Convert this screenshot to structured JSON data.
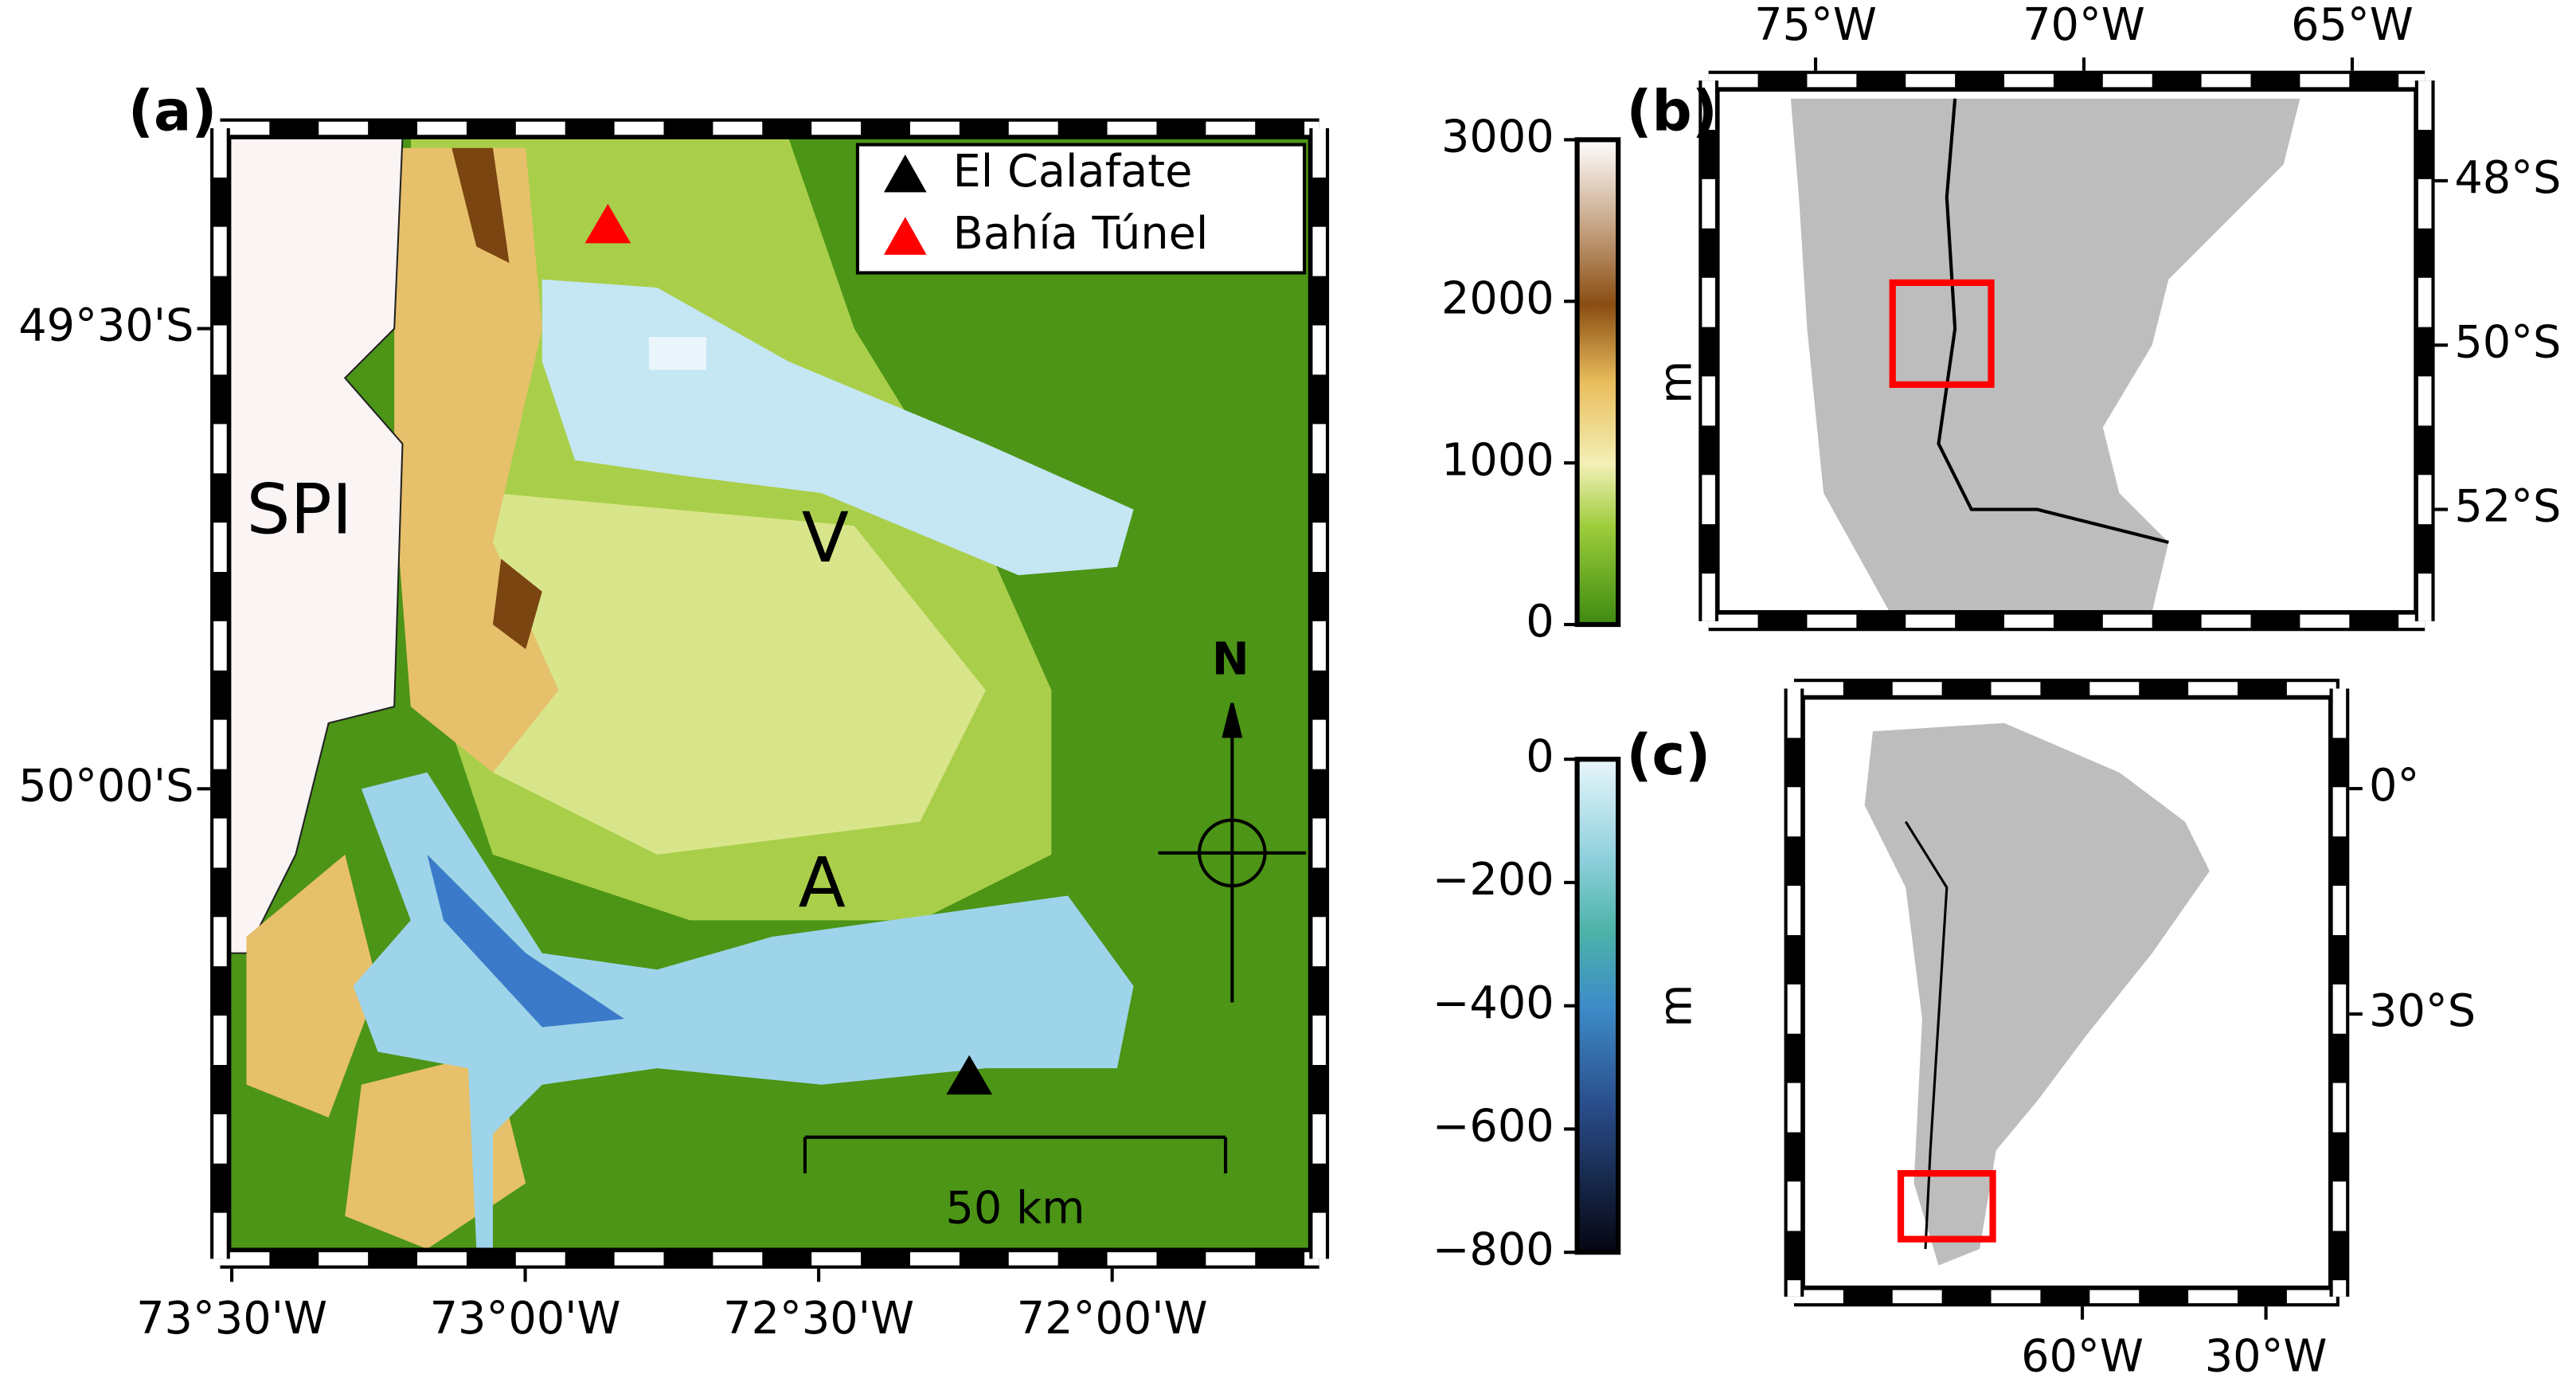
{
  "panels": {
    "a": {
      "label": "(a)",
      "xlim": [
        -73.503,
        -71.664
      ],
      "ylim": [
        -50.5,
        -49.293
      ],
      "xticks": [
        {
          "value": -73.5,
          "label": "73°30'W"
        },
        {
          "value": -73,
          "label": "73°00'W"
        },
        {
          "value": -72.5,
          "label": "72°30'W"
        },
        {
          "value": -72,
          "label": "72°00'W"
        }
      ],
      "yticks": [
        {
          "value": -49.5,
          "label": "49°30'S"
        },
        {
          "value": -50,
          "label": "50°00'S"
        }
      ],
      "legend": [
        {
          "name": "El Calafate",
          "color": "#000000"
        },
        {
          "name": "Bahía Túnel",
          "color": "#ff0000"
        }
      ],
      "annotations": {
        "spi": "SPI",
        "viedma": "V",
        "argentino": "A",
        "north": "N",
        "scale": "50 km"
      }
    },
    "b": {
      "label": "(b)",
      "xlim": [
        -76.81,
        -63.83
      ],
      "ylim": [
        -53.24,
        -46.9
      ],
      "xticks": [
        {
          "value": -75,
          "label": "75°W"
        },
        {
          "value": -70,
          "label": "70°W"
        },
        {
          "value": -65,
          "label": "65°W"
        }
      ],
      "yticks": [
        {
          "value": -48,
          "label": "48°S"
        },
        {
          "value": -50,
          "label": "50°S"
        },
        {
          "value": -52,
          "label": "52°S"
        }
      ]
    },
    "c": {
      "label": "(c)",
      "xlim": [
        -105.5,
        -19.6
      ],
      "ylim": [
        -66.3,
        12
      ],
      "xticks": [
        {
          "value": -60,
          "label": "60°W"
        },
        {
          "value": -30,
          "label": "30°W"
        }
      ],
      "yticks": [
        {
          "value": 0,
          "label": "0°"
        },
        {
          "value": -30,
          "label": "30°S"
        }
      ]
    }
  },
  "colorbars": [
    {
      "range": [
        0,
        3000
      ],
      "ticks": [
        0,
        1000,
        2000,
        3000
      ],
      "unit": "m"
    },
    {
      "range": [
        -800,
        0
      ],
      "ticks": [
        0,
        {
          "value": -200,
          "label": "−200"
        },
        {
          "value": -400,
          "label": "−400"
        },
        {
          "value": -600,
          "label": "−600"
        },
        {
          "value": -800,
          "label": "−800"
        }
      ],
      "unit": "m"
    }
  ]
}
